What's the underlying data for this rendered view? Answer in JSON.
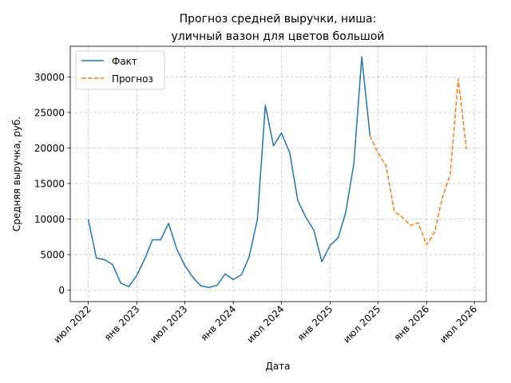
{
  "chart_data": {
    "type": "line",
    "title_lines": [
      "Прогноз средней выручки, ниша:",
      "уличный вазон для цветов большой"
    ],
    "xlabel": "Дата",
    "ylabel": "Средняя выручка, руб.",
    "ylim": [
      -1600,
      34300
    ],
    "yticks": [
      0,
      5000,
      10000,
      15000,
      20000,
      25000,
      30000
    ],
    "ytick_labels": [
      "0",
      "5000",
      "10000",
      "15000",
      "20000",
      "25000",
      "30000"
    ],
    "xticks": [
      "2022-07-01",
      "2023-01-01",
      "2023-07-01",
      "2024-01-01",
      "2024-07-01",
      "2025-01-01",
      "2025-07-01",
      "2026-01-01",
      "2026-07-01"
    ],
    "xtick_labels": [
      "июл 2022",
      "янв 2023",
      "июл 2023",
      "янв 2024",
      "июл 2024",
      "янв 2025",
      "июл 2025",
      "янв 2026",
      "июл 2026"
    ],
    "xlim": [
      "2022-04-24",
      "2026-08-15"
    ],
    "grid": true,
    "legend_position": "top-left",
    "series": [
      {
        "name": "Факт",
        "color": "#1f77b4",
        "style": "solid",
        "points": [
          [
            "2022-07-01",
            10000
          ],
          [
            "2022-08-01",
            4500
          ],
          [
            "2022-09-01",
            4300
          ],
          [
            "2022-10-01",
            3600
          ],
          [
            "2022-11-01",
            1000
          ],
          [
            "2022-12-01",
            500
          ],
          [
            "2023-01-01",
            2100
          ],
          [
            "2023-02-01",
            4500
          ],
          [
            "2023-03-01",
            7100
          ],
          [
            "2023-04-01",
            7100
          ],
          [
            "2023-05-01",
            9400
          ],
          [
            "2023-06-01",
            5800
          ],
          [
            "2023-07-01",
            3500
          ],
          [
            "2023-08-01",
            1800
          ],
          [
            "2023-09-01",
            600
          ],
          [
            "2023-10-01",
            400
          ],
          [
            "2023-11-01",
            700
          ],
          [
            "2023-12-01",
            2300
          ],
          [
            "2024-01-01",
            1500
          ],
          [
            "2024-02-01",
            2200
          ],
          [
            "2024-03-01",
            4700
          ],
          [
            "2024-04-01",
            10000
          ],
          [
            "2024-05-01",
            26000
          ],
          [
            "2024-06-01",
            20300
          ],
          [
            "2024-07-01",
            22100
          ],
          [
            "2024-08-01",
            19400
          ],
          [
            "2024-09-01",
            12600
          ],
          [
            "2024-10-01",
            10300
          ],
          [
            "2024-11-01",
            8400
          ],
          [
            "2024-12-01",
            4000
          ],
          [
            "2025-01-01",
            6300
          ],
          [
            "2025-02-01",
            7400
          ],
          [
            "2025-03-01",
            10900
          ],
          [
            "2025-04-01",
            17800
          ],
          [
            "2025-05-01",
            32800
          ],
          [
            "2025-06-01",
            21700
          ]
        ]
      },
      {
        "name": "Прогноз",
        "color": "#ff7f0e",
        "style": "dashed",
        "points": [
          [
            "2025-06-01",
            21700
          ],
          [
            "2025-07-01",
            19300
          ],
          [
            "2025-08-01",
            17500
          ],
          [
            "2025-09-01",
            11100
          ],
          [
            "2025-10-01",
            10300
          ],
          [
            "2025-11-01",
            9100
          ],
          [
            "2025-12-01",
            9500
          ],
          [
            "2026-01-01",
            6400
          ],
          [
            "2026-02-01",
            8200
          ],
          [
            "2026-03-01",
            12900
          ],
          [
            "2026-04-01",
            16300
          ],
          [
            "2026-05-01",
            29700
          ],
          [
            "2026-06-01",
            19800
          ]
        ]
      }
    ]
  }
}
